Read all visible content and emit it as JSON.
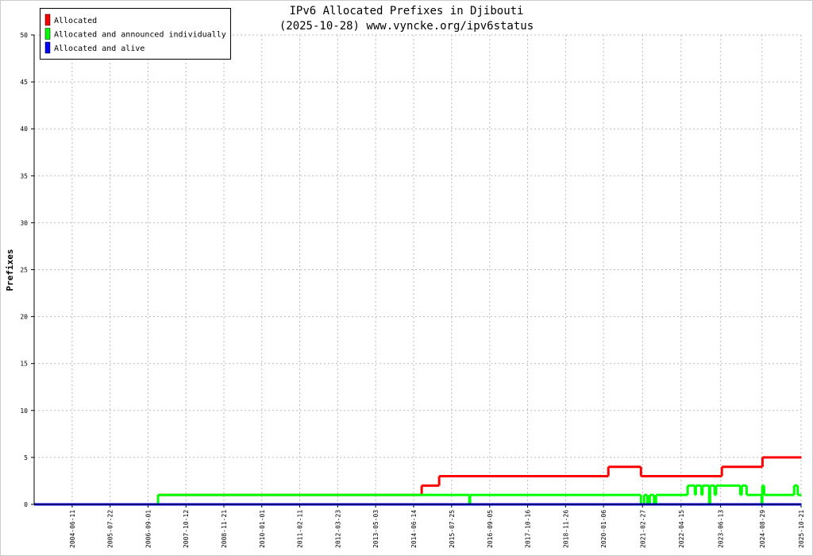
{
  "chart_data": {
    "type": "step",
    "title": "IPv6 Allocated Prefixes in Djibouti",
    "subtitle": "(2025-10-28) www.vyncke.org/ipv6status",
    "y_label": "Prefixes",
    "xlim": [
      "2003-05-01",
      "2025-10-21"
    ],
    "ylim": [
      0,
      50
    ],
    "yticks": [
      0,
      5,
      10,
      15,
      20,
      25,
      30,
      35,
      40,
      45,
      50
    ],
    "xticks": [
      "2004-06-11",
      "2005-07-22",
      "2006-09-01",
      "2007-10-12",
      "2008-11-21",
      "2010-01-01",
      "2011-02-11",
      "2012-03-23",
      "2013-05-03",
      "2014-06-14",
      "2015-07-25",
      "2016-09-05",
      "2017-10-16",
      "2018-11-26",
      "2020-01-06",
      "2021-02-27",
      "2022-04-15",
      "2023-06-13",
      "2024-08-29",
      "2025-10-21"
    ],
    "grid": true,
    "legend": "top-left",
    "series": [
      {
        "name": "Allocated",
        "color": "#ff0000",
        "x": [
          "2003-05-01",
          "2006-12-17",
          "2014-09-08",
          "2015-03-14",
          "2020-02-27",
          "2021-02-10",
          "2023-06-26",
          "2024-09-03",
          "2025-10-21"
        ],
        "values": [
          0,
          1,
          2,
          3,
          4,
          3,
          4,
          5,
          5
        ]
      },
      {
        "name": "Allocated and announced individually",
        "color": "#00ff00",
        "x": [
          "2003-05-01",
          "2006-12-17",
          "2016-01-31",
          "2016-02-08",
          "2021-02-10",
          "2021-03-16",
          "2021-04-20",
          "2021-05-15",
          "2021-06-30",
          "2021-07-21",
          "2022-06-25",
          "2022-09-10",
          "2022-09-20",
          "2022-11-20",
          "2022-12-01",
          "2023-02-10",
          "2023-02-20",
          "2023-04-10",
          "2023-04-25",
          "2024-01-09",
          "2024-01-25",
          "2024-03-17",
          "2024-08-25",
          "2024-09-01",
          "2024-09-20",
          "2025-08-08",
          "2025-09-15",
          "2025-10-21"
        ],
        "values": [
          0,
          1,
          0,
          1,
          0,
          1,
          0,
          1,
          0,
          1,
          2,
          1,
          2,
          1,
          2,
          0,
          2,
          1,
          2,
          1,
          2,
          1,
          0,
          2,
          1,
          2,
          1,
          1
        ]
      },
      {
        "name": "Allocated and alive",
        "color": "#0000ff",
        "x": [
          "2003-05-01",
          "2025-10-21"
        ],
        "values": [
          0,
          0
        ]
      }
    ]
  }
}
